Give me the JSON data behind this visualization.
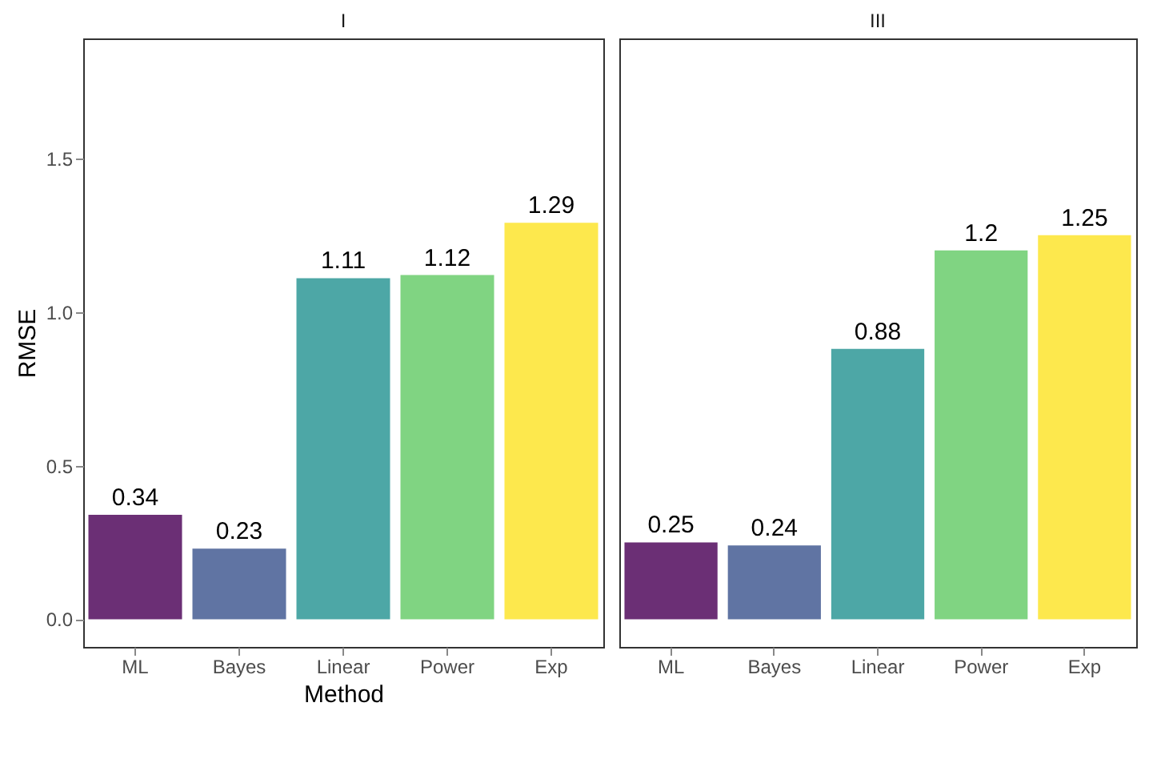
{
  "chart_data": [
    {
      "type": "bar",
      "title": "I",
      "xlabel": "Method",
      "ylabel": "RMSE",
      "categories": [
        "ML",
        "Bayes",
        "Linear",
        "Power",
        "Exp"
      ],
      "values": [
        0.34,
        0.23,
        1.11,
        1.12,
        1.29
      ],
      "colors": [
        "#6b2f75",
        "#6074a3",
        "#4da7a6",
        "#80d482",
        "#fde84d"
      ],
      "ylim": [
        -0.09,
        1.89
      ],
      "yticks": [
        {
          "value": 0,
          "label": "0.0"
        },
        {
          "value": 0.5,
          "label": "0.5"
        },
        {
          "value": 1,
          "label": "1.0"
        },
        {
          "value": 1.5,
          "label": "1.5"
        }
      ],
      "data_labels": true,
      "grid": false
    },
    {
      "type": "bar",
      "title": "III",
      "categories": [
        "ML",
        "Bayes",
        "Linear",
        "Power",
        "Exp"
      ],
      "values": [
        0.25,
        0.24,
        0.88,
        1.2,
        1.25
      ],
      "colors": [
        "#6b2f75",
        "#6074a3",
        "#4da7a6",
        "#80d482",
        "#fde84d"
      ],
      "ylim": [
        -0.09,
        1.89
      ],
      "data_labels": true,
      "grid": false,
      "tick_labels": "x"
    }
  ]
}
